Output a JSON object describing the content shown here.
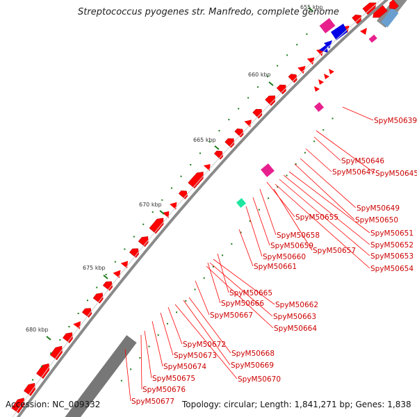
{
  "title": "Streptococcus pyogenes str. Manfredo, complete genome",
  "accession": "Accession: NC_009332",
  "stats": "Topology: circular; Length: 1,841,271 bp; Genes: 1,838",
  "colors": {
    "backbone": "#8a8a8a",
    "gene_forward": "#ff0000",
    "gene_pink": "#e8208e",
    "gene_blue": "#0000e6",
    "gene_teal": "#20e6a0",
    "rna_track": "#777777",
    "tick": "#1a7a1a",
    "label": "#cc0000",
    "leader": "#ff0000"
  },
  "scale_ticks": [
    "655 kbp",
    "660 kbp",
    "665 kbp",
    "670 kbp",
    "675 kbp",
    "680 kbp"
  ],
  "genes": [
    "SpyM50639",
    "SpyM50646",
    "SpyM50647",
    "SpyM50645",
    "SpyM50649",
    "SpyM50650",
    "SpyM50651",
    "SpyM50655",
    "SpyM50652",
    "SpyM50653",
    "SpyM50658",
    "SpyM50654",
    "SpyM50659",
    "SpyM50657",
    "SpyM50660",
    "SpyM50661",
    "SpyM50665",
    "SpyM50662",
    "SpyM50666",
    "SpyM50663",
    "SpyM50667",
    "SpyM50664",
    "SpyM50672",
    "SpyM50668",
    "SpyM50673",
    "SpyM50669",
    "SpyM50674",
    "SpyM50670",
    "SpyM50675",
    "SpyM50676",
    "SpyM50677"
  ]
}
